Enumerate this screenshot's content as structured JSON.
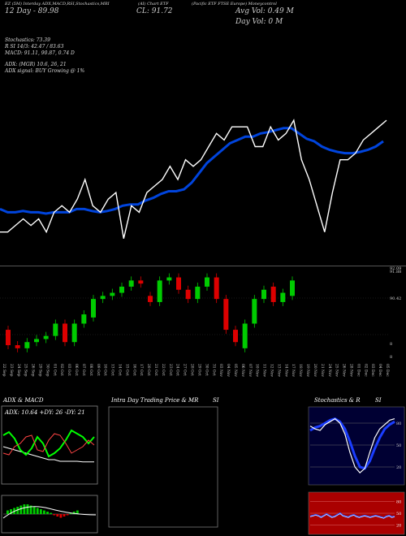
{
  "header": {
    "line1": "EZ (5M) Interday ADX,MACD,RSI,Stochastics,MRI",
    "line1b": "(AI) Chart ETF",
    "line1c": "(Pacific ETF FTSE Europe) Moneycontrol",
    "open_text": "12 Day - 89.98",
    "close_text": "CL: 91.72",
    "avg_vol": "Avg Vol: 0.49 M",
    "day_vol": "Day Vol: 0   M"
  },
  "indicators": {
    "stoch": "Stochastics: 73.39",
    "rsi": "R        SI 14/3: 42.47 / 83.63",
    "macd": "MACD: 91.11,  90.87,  0.74  D",
    "adx": "ADX:                             (MGR) 10.6,  26,  21",
    "adx_signal": "ADX  signal:                           BUY Growing @ 1%"
  },
  "price_axis": [
    "92.09",
    "91.88",
    "90.42",
    "8",
    "8"
  ],
  "date_labels": [
    "22 Sep",
    "23 Sep",
    "24 Sep",
    "25 Sep",
    "26 Sep",
    "29 Sep",
    "30 Sep",
    "01 Oct",
    "02 Oct",
    "03 Oct",
    "06 Oct",
    "07 Oct",
    "08 Oct",
    "09 Oct",
    "10 Oct",
    "13 Oct",
    "14 Oct",
    "15 Oct",
    "16 Oct",
    "17 Oct",
    "20 Oct",
    "21 Oct",
    "22 Oct",
    "23 Oct",
    "24 Oct",
    "27 Oct",
    "28 Oct",
    "29 Oct",
    "30 Oct",
    "31 Oct",
    "03 Nov",
    "04 Nov",
    "05 Nov",
    "06 Nov",
    "07 Nov",
    "10 Nov",
    "11 Nov",
    "12 Nov",
    "13 Nov",
    "14 Nov",
    "17 Nov",
    "18 Nov",
    "19 Nov",
    "20 Nov",
    "21 Nov",
    "24 Nov",
    "25 Nov",
    "26 Nov",
    "28 Nov",
    "01 Dec",
    "02 Dec",
    "03 Dec",
    "04 Dec",
    "05 Dec"
  ],
  "panels": {
    "adx_title": "ADX  & MACD",
    "adx_values": "ADX: 10.64  +DY: 26  -DY: 21",
    "intra_title": "Intra  Day Trading Price  & MR",
    "intra_si": "SI",
    "stoch_title": "Stochastics & R",
    "stoch_si": "SI",
    "stoch_ticks": [
      "80",
      "50",
      "20"
    ],
    "rsi_ticks": [
      "80",
      "50",
      "20"
    ]
  },
  "colors": {
    "up": "#00cc00",
    "down": "#dd0000",
    "ma": "#0044dd",
    "price_line": "#ffffff",
    "rsi_bg": "#aa0000",
    "stoch_bg": "#000033"
  },
  "chart_data": [
    {
      "type": "line",
      "name": "close-vs-ma",
      "series": [
        {
          "name": "",
          "values": [
            90.2,
            90.2,
            90.3,
            90.4,
            90.3,
            90.4,
            90.2,
            90.5,
            90.6,
            90.5,
            90.7,
            91.0,
            90.6,
            90.5,
            90.7,
            90.8,
            90.1,
            90.6,
            90.5,
            90.8,
            90.9,
            91.0,
            91.2,
            91.0,
            91.3,
            91.2,
            91.3,
            91.5,
            91.7,
            91.6,
            91.8,
            91.8,
            91.8,
            91.5,
            91.5,
            91.8,
            91.6,
            91.7,
            91.9,
            91.3,
            91.0,
            90.6,
            90.2,
            90.8,
            91.3,
            91.3,
            91.4,
            91.6,
            91.7,
            91.8,
            91.9
          ]
        },
        {
          "name": "",
          "values": [
            90.55,
            90.5,
            90.5,
            90.52,
            90.5,
            90.5,
            90.48,
            90.5,
            90.5,
            90.5,
            90.55,
            90.55,
            90.52,
            90.5,
            90.52,
            90.55,
            90.6,
            90.62,
            90.62,
            90.68,
            90.72,
            90.78,
            90.82,
            90.82,
            90.85,
            90.95,
            91.1,
            91.25,
            91.35,
            91.45,
            91.55,
            91.6,
            91.65,
            91.65,
            91.7,
            91.72,
            91.75,
            91.78,
            91.78,
            91.7,
            91.62,
            91.58,
            91.5,
            91.45,
            91.42,
            91.4,
            91.4,
            91.42,
            91.45,
            91.5,
            91.58
          ]
        }
      ]
    },
    {
      "type": "bar",
      "name": "candles",
      "open": [
        90.4,
        89.9,
        89.8,
        90.0,
        90.1,
        90.2,
        90.6,
        90.0,
        90.6,
        90.8,
        91.4,
        91.5,
        91.6,
        91.8,
        92.0,
        91.5,
        91.3,
        92.0,
        92.1,
        91.7,
        91.4,
        91.8,
        92.1,
        91.4,
        90.4,
        89.8,
        90.6,
        91.4,
        91.8,
        91.3,
        91.5
      ],
      "close": [
        89.9,
        89.8,
        90.0,
        90.1,
        90.2,
        90.6,
        90.0,
        90.6,
        90.9,
        91.4,
        91.5,
        91.6,
        91.8,
        92.0,
        91.9,
        91.3,
        92.0,
        92.1,
        91.7,
        91.4,
        91.8,
        92.1,
        91.4,
        90.4,
        90.0,
        90.6,
        91.4,
        91.7,
        91.3,
        91.6,
        92.0
      ]
    },
    {
      "type": "line",
      "name": "adx-dmi",
      "series": [
        {
          "name": "ADX",
          "values": [
            20,
            19,
            18,
            17,
            16,
            15,
            14,
            13,
            12,
            12,
            11,
            11,
            11,
            11,
            10.6,
            10.6,
            10.6
          ]
        },
        {
          "name": "+DY",
          "values": [
            27,
            29,
            25,
            18,
            15,
            19,
            26,
            22,
            14,
            16,
            19,
            24,
            30,
            28,
            26,
            22,
            26
          ]
        },
        {
          "name": "-DY",
          "values": [
            16,
            15,
            20,
            22,
            26,
            27,
            18,
            17,
            24,
            28,
            27,
            22,
            16,
            18,
            20,
            24,
            21
          ]
        }
      ]
    },
    {
      "type": "line",
      "name": "stochastics",
      "series": [
        {
          "name": "",
          "values": [
            76,
            72,
            70,
            78,
            82,
            86,
            80,
            65,
            40,
            20,
            12,
            18,
            40,
            60,
            72,
            78,
            84,
            86
          ]
        },
        {
          "name": "",
          "values": [
            70,
            74,
            76,
            80,
            84,
            86,
            82,
            72,
            55,
            35,
            20,
            18,
            28,
            45,
            60,
            72,
            78,
            82
          ]
        }
      ]
    },
    {
      "type": "line",
      "name": "rsi",
      "series": [
        {
          "name": "",
          "values": [
            42,
            44,
            46,
            44,
            40,
            44,
            48,
            44,
            40,
            42,
            46,
            50,
            44,
            42,
            40,
            44,
            46,
            42,
            40,
            42,
            44,
            42,
            40,
            42,
            44,
            42,
            40,
            38,
            42,
            44,
            40,
            42
          ]
        }
      ]
    }
  ]
}
